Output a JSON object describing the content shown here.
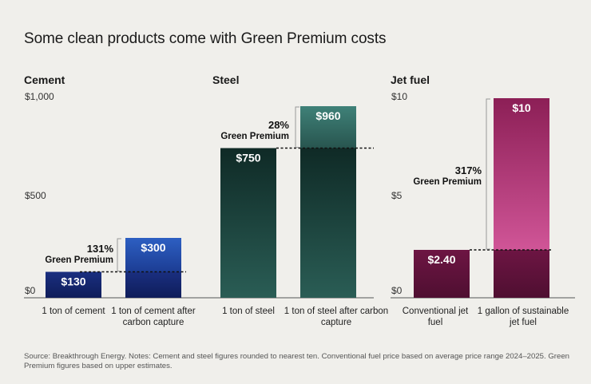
{
  "title": "Some clean products come with Green Premium costs",
  "footer": "Source: Breakthrough Energy. Notes: Cement and steel figures rounded to nearest ten. Conventional fuel price based on average price range 2024–2025. Green Premium figures based on upper estimates.",
  "chart_data": [
    {
      "type": "bar",
      "title": "Cement",
      "categories": [
        "1 ton of cement",
        "1 ton of cement after carbon capture"
      ],
      "values": [
        130,
        300
      ],
      "value_labels": [
        "$130",
        "$300"
      ],
      "ylim": [
        0,
        1000
      ],
      "yticks": [
        "$0",
        "$500",
        "$1,000"
      ],
      "green_premium": {
        "percent": "131%",
        "label": "Green Premium"
      },
      "colors": {
        "base": "#14266b",
        "premium": "#2b59b8"
      }
    },
    {
      "type": "bar",
      "title": "Steel",
      "categories": [
        "1 ton of steel",
        "1 ton of steel after carbon capture"
      ],
      "values": [
        750,
        960
      ],
      "value_labels": [
        "$750",
        "$960"
      ],
      "ylim": [
        0,
        1000
      ],
      "green_premium": {
        "percent": "28%",
        "label": "Green Premium"
      },
      "colors": {
        "base": "#1e4a43",
        "premium": "#3c7a72"
      }
    },
    {
      "type": "bar",
      "title": "Jet fuel",
      "categories": [
        "Conventional jet fuel",
        "1 gallon of sustainable jet fuel"
      ],
      "values": [
        2.4,
        10
      ],
      "value_labels": [
        "$2.40",
        "$10"
      ],
      "ylim": [
        0,
        10
      ],
      "yticks": [
        "$0",
        "$5",
        "$10"
      ],
      "green_premium": {
        "percent": "317%",
        "label": "Green Premium"
      },
      "colors": {
        "base": "#5a1138",
        "premium": "#b8367f"
      }
    }
  ]
}
